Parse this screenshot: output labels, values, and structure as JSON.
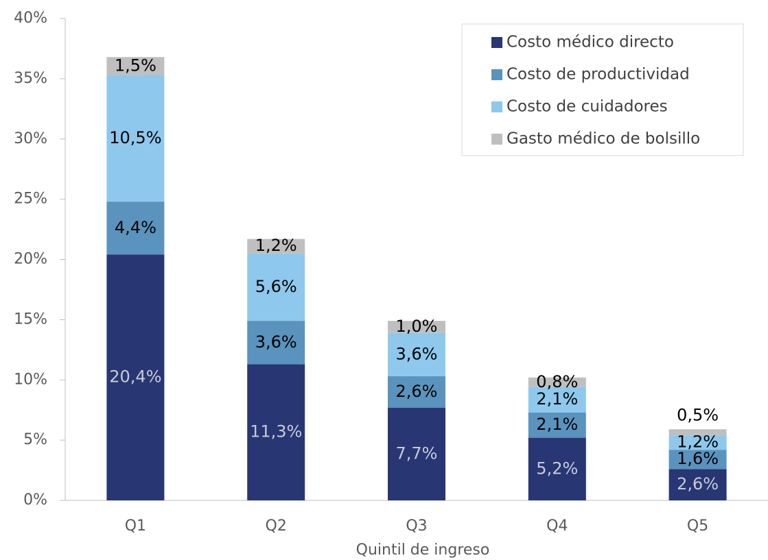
{
  "chart_data": {
    "type": "stacked_bar",
    "x_label": "Quintil de ingreso",
    "categories": [
      "Q1",
      "Q2",
      "Q3",
      "Q4",
      "Q5"
    ],
    "series": [
      {
        "name": "Costo médico directo",
        "color": "#283673",
        "values": [
          20.4,
          11.3,
          7.7,
          5.2,
          2.6
        ],
        "value_labels": [
          "20,4%",
          "11,3%",
          "7,7%",
          "5,2%",
          "2,6%"
        ]
      },
      {
        "name": "Costo de productividad",
        "color": "#5a93bd",
        "values": [
          4.4,
          3.6,
          2.6,
          2.1,
          1.6
        ],
        "value_labels": [
          "4,4%",
          "3,6%",
          "2,6%",
          "2,1%",
          "1,6%"
        ]
      },
      {
        "name": "Costo de cuidadores",
        "color": "#8ec8ec",
        "values": [
          10.5,
          5.6,
          3.6,
          2.1,
          1.2
        ],
        "value_labels": [
          "10,5%",
          "5,6%",
          "3,6%",
          "2,1%",
          "1,2%"
        ]
      },
      {
        "name": "Gasto médico de bolsillo",
        "color": "#bfbfbf",
        "values": [
          1.5,
          1.2,
          1.0,
          0.8,
          0.5
        ],
        "value_labels": [
          "1,5%",
          "1,2%",
          "1,0%",
          "0,8%",
          "0,5%"
        ]
      }
    ],
    "ylim": [
      0,
      40
    ],
    "yticks": [
      {
        "value": 0,
        "label": "0%"
      },
      {
        "value": 5,
        "label": "5%"
      },
      {
        "value": 10,
        "label": "10%"
      },
      {
        "value": 15,
        "label": "15%"
      },
      {
        "value": 20,
        "label": "20%"
      },
      {
        "value": 25,
        "label": "25%"
      },
      {
        "value": 30,
        "label": "30%"
      },
      {
        "value": 35,
        "label": "35%"
      },
      {
        "value": 40,
        "label": "40%"
      }
    ],
    "legend": "upper right"
  }
}
